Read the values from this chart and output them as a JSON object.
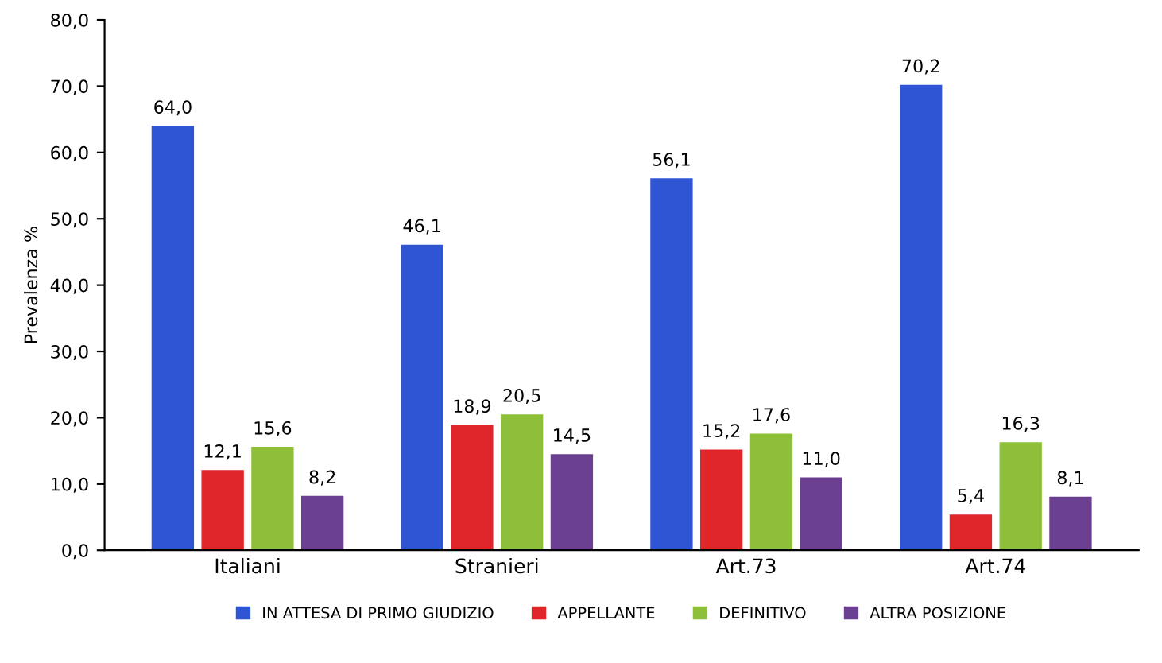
{
  "chart_data": {
    "type": "bar",
    "ylabel": "Prevalenza %",
    "categories": [
      "Italiani",
      "Stranieri",
      "Art.73",
      "Art.74"
    ],
    "series": [
      {
        "name": "IN ATTESA DI PRIMO GIUDIZIO",
        "color": "#2f55d4",
        "values": [
          64.0,
          46.1,
          56.1,
          70.2
        ],
        "value_labels": [
          "64,0",
          "46,1",
          "56,1",
          "70,2"
        ]
      },
      {
        "name": "APPELLANTE",
        "color": "#e0252b",
        "values": [
          12.1,
          18.9,
          15.2,
          5.4
        ],
        "value_labels": [
          "12,1",
          "18,9",
          "15,2",
          "5,4"
        ]
      },
      {
        "name": "DEFINITIVO",
        "color": "#8dbf3b",
        "values": [
          15.6,
          20.5,
          17.6,
          16.3
        ],
        "value_labels": [
          "15,6",
          "20,5",
          "17,6",
          "16,3"
        ]
      },
      {
        "name": "ALTRA POSIZIONE",
        "color": "#6b3f91",
        "values": [
          8.2,
          14.5,
          11.0,
          8.1
        ],
        "value_labels": [
          "8,2",
          "14,5",
          "11,0",
          "8,1"
        ]
      }
    ],
    "ylim": [
      0,
      80
    ],
    "yticks": [
      {
        "value": 0,
        "label": "0,0"
      },
      {
        "value": 10,
        "label": "10,0"
      },
      {
        "value": 20,
        "label": "20,0"
      },
      {
        "value": 30,
        "label": "30,0"
      },
      {
        "value": 40,
        "label": "40,0"
      },
      {
        "value": 50,
        "label": "50,0"
      },
      {
        "value": 60,
        "label": "60,0"
      },
      {
        "value": 70,
        "label": "70,0"
      },
      {
        "value": 80,
        "label": "80,0"
      }
    ],
    "grid": false,
    "legend": "bottom"
  }
}
